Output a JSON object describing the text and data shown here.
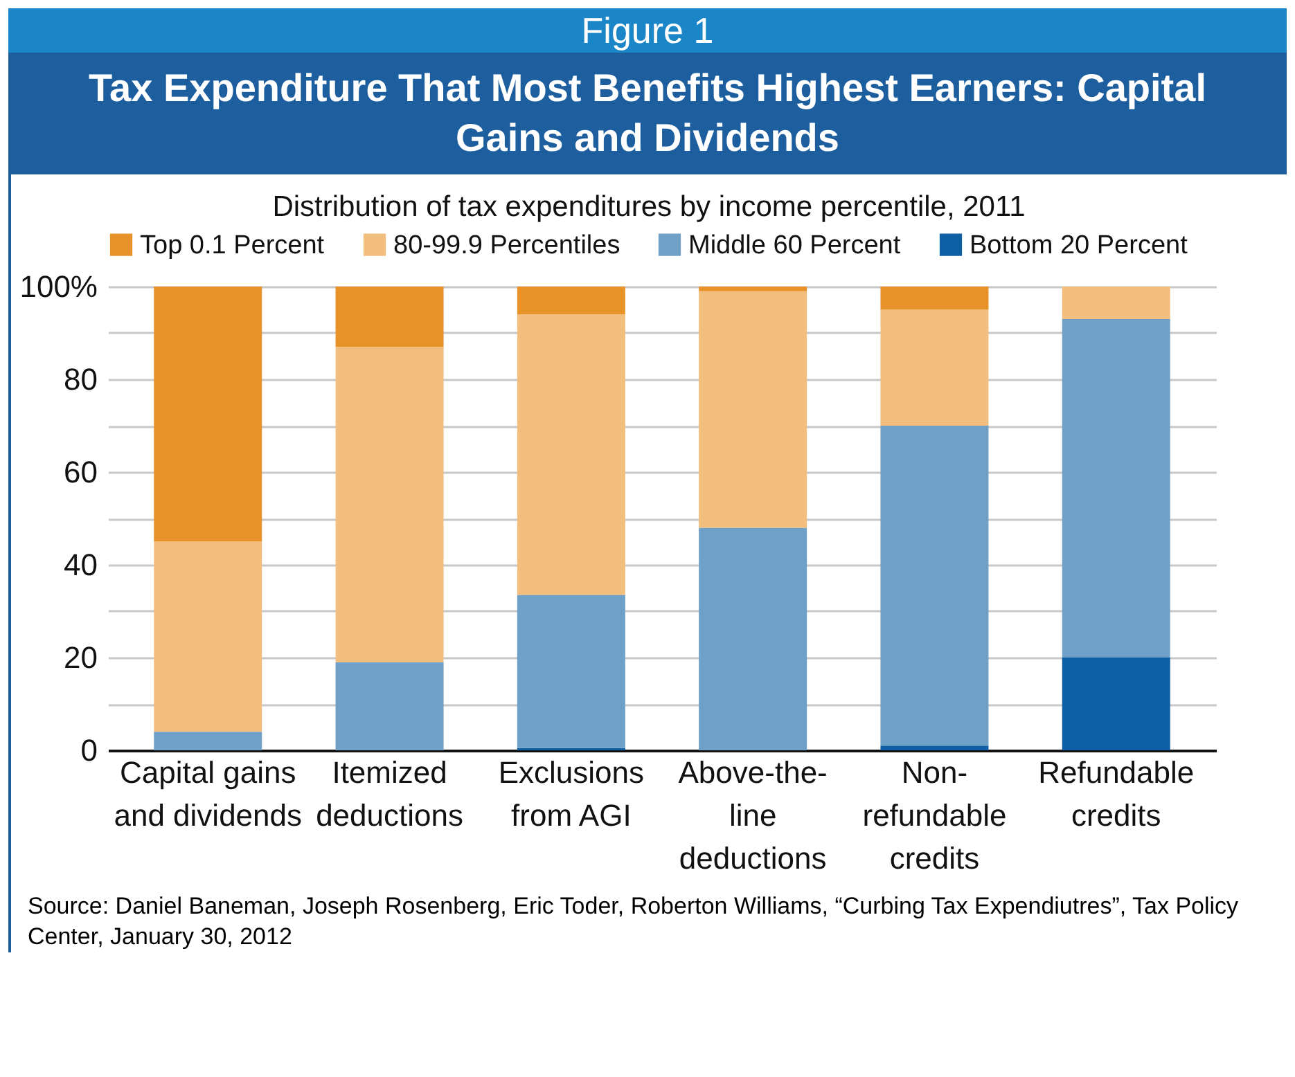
{
  "chart_data": {
    "type": "bar",
    "stacked": true,
    "title": "Tax Expenditure That Most Benefits Highest Earners: Capital Gains and Dividends",
    "subtitle": "Distribution of tax expenditures by income percentile, 2011",
    "annotations": [
      "Figure 1",
      "Source: Daniel Baneman, Joseph Rosenberg, Eric Toder, Roberton Williams, “Curbing Tax Expendiutres”, Tax Policy Center, January 30, 2012"
    ],
    "categories": [
      "Capital gains and dividends",
      "Itemized deductions",
      "Exclusions from AGI",
      "Above-the-line deductions",
      "Non-refundable credits",
      "Refundable credits"
    ],
    "series": [
      {
        "name": "Bottom 20 Percent",
        "color": "#0f5fa5",
        "values": [
          0,
          0,
          0.5,
          0,
          1,
          20
        ]
      },
      {
        "name": "Middle 60 Percent",
        "color": "#6ea0c8",
        "values": [
          4,
          19,
          33,
          48,
          69,
          73
        ]
      },
      {
        "name": "80-99.9 Percentiles",
        "color": "#f2be7e",
        "values": [
          41,
          68,
          60.5,
          51,
          25,
          7
        ]
      },
      {
        "name": "Top 0.1 Percent",
        "color": "#e8922a",
        "values": [
          55,
          13,
          6,
          1,
          5,
          0
        ]
      }
    ],
    "ylim": [
      0,
      100
    ],
    "yticks": [
      0,
      {
        "value": 10,
        "label": null
      },
      20,
      {
        "value": 30,
        "label": null
      },
      40,
      {
        "value": 50,
        "label": null
      },
      60,
      {
        "value": 70,
        "label": null
      },
      80,
      {
        "value": 90,
        "label": null
      },
      {
        "value": 100,
        "label": "100%"
      }
    ],
    "grid": "y",
    "legend": "top"
  }
}
